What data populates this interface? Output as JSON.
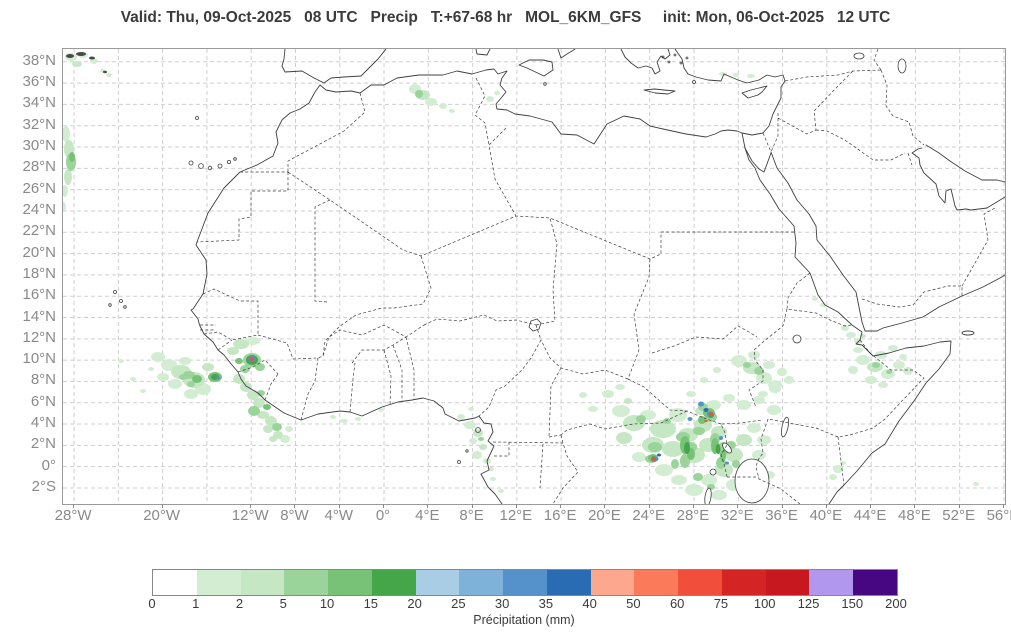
{
  "title": "Valid: Thu, 09-Oct-2025   08 UTC   Precip   T:+67-68 hr   MOL_6KM_GFS     init: Mon, 06-Oct-2025   12 UTC",
  "map_axes": {
    "lat_labels": [
      "38°N",
      "36°N",
      "34°N",
      "32°N",
      "30°N",
      "28°N",
      "26°N",
      "24°N",
      "22°N",
      "20°N",
      "18°N",
      "16°N",
      "14°N",
      "12°N",
      "10°N",
      "8°N",
      "6°N",
      "4°N",
      "2°N",
      "0°",
      "2°S"
    ],
    "lon_labels": [
      "28°W",
      "20°W",
      "12°W",
      "8°W",
      "4°W",
      "0°",
      "4°E",
      "8°E",
      "12°E",
      "16°E",
      "20°E",
      "24°E",
      "28°E",
      "32°E",
      "36°E",
      "40°E",
      "44°E",
      "48°E",
      "52°E",
      "56°E"
    ]
  },
  "colorbar": {
    "tick_labels": [
      "0",
      "1",
      "2",
      "5",
      "10",
      "15",
      "20",
      "25",
      "30",
      "35",
      "40",
      "50",
      "60",
      "75",
      "100",
      "125",
      "150",
      "200"
    ],
    "segment_colors": [
      "#ffffff",
      "#d2edd2",
      "#c5e7c4",
      "#9bd49b",
      "#77c277",
      "#45a649",
      "#a9cde5",
      "#7fb2d9",
      "#5592cc",
      "#2a6cb3",
      "#fca78e",
      "#fa7a5a",
      "#f14f3b",
      "#d42423",
      "#c6181e",
      "#b297ee",
      "#470782"
    ],
    "caption": "Précipitation (mm)"
  }
}
